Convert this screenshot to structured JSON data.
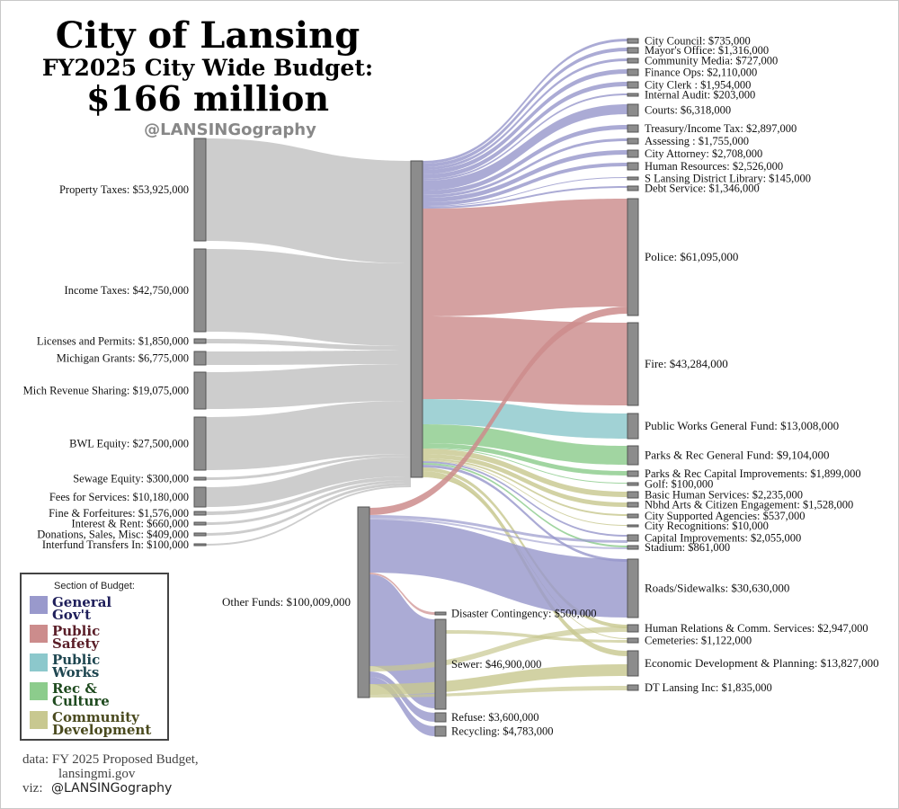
{
  "title": {
    "line1": "City of Lansing",
    "line2": "FY2025 City Wide Budget:",
    "line3": "$166 million",
    "handle": "@LANSINGography"
  },
  "colors": {
    "revenue": "#c8c8c8",
    "general_govt": "#9999cc",
    "public_safety": "#cc8c8c",
    "public_works": "#8cc8cc",
    "rec_culture": "#8ccc8c",
    "community_dev": "#c8c890",
    "node": "#8c8c8c"
  },
  "sources": [
    {
      "label": "Property Taxes: $53,925,000",
      "value": 53925000
    },
    {
      "label": "Income Taxes: $42,750,000",
      "value": 42750000
    },
    {
      "label": "Licenses and Permits: $1,850,000",
      "value": 1850000
    },
    {
      "label": "Michigan Grants: $6,775,000",
      "value": 6775000
    },
    {
      "label": "Mich Revenue Sharing: $19,075,000",
      "value": 19075000
    },
    {
      "label": "BWL Equity: $27,500,000",
      "value": 27500000
    },
    {
      "label": "Sewage Equity: $300,000",
      "value": 300000
    },
    {
      "label": "Fees for Services: $10,180,000",
      "value": 10180000
    },
    {
      "label": "Fine & Forfeitures: $1,576,000",
      "value": 1576000
    },
    {
      "label": "Interest & Rent: $660,000",
      "value": 660000
    },
    {
      "label": "Donations, Sales, Misc: $409,000",
      "value": 409000
    },
    {
      "label": "Interfund Transfers In: $100,000",
      "value": 100000
    }
  ],
  "other_funds": {
    "label": "Other Funds: $100,009,000",
    "value": 100009000
  },
  "sub_funds": [
    {
      "label": "Disaster Contingency: $500,000",
      "value": 500000
    },
    {
      "label": "Sewer: $46,900,000",
      "value": 46900000
    },
    {
      "label": "Refuse: $3,600,000",
      "value": 3600000
    },
    {
      "label": "Recycling: $4,783,000",
      "value": 4783000
    }
  ],
  "targets": [
    {
      "label": "City Council: $735,000",
      "value": 735000,
      "section": "general_govt"
    },
    {
      "label": "Mayor's Office: $1,316,000",
      "value": 1316000,
      "section": "general_govt"
    },
    {
      "label": "Community Media: $727,000",
      "value": 727000,
      "section": "general_govt"
    },
    {
      "label": "Finance Ops: $2,110,000",
      "value": 2110000,
      "section": "general_govt"
    },
    {
      "label": "City Clerk : $1,954,000",
      "value": 1954000,
      "section": "general_govt"
    },
    {
      "label": "Internal Audit: $203,000",
      "value": 203000,
      "section": "general_govt"
    },
    {
      "label": "Courts: $6,318,000",
      "value": 6318000,
      "section": "general_govt"
    },
    {
      "label": "Treasury/Income Tax: $2,897,000",
      "value": 2897000,
      "section": "general_govt"
    },
    {
      "label": "Assessing : $1,755,000",
      "value": 1755000,
      "section": "general_govt"
    },
    {
      "label": "City Attorney: $2,708,000",
      "value": 2708000,
      "section": "general_govt"
    },
    {
      "label": "Human Resources: $2,526,000",
      "value": 2526000,
      "section": "general_govt"
    },
    {
      "label": "S Lansing District Library: $145,000",
      "value": 145000,
      "section": "general_govt"
    },
    {
      "label": "Debt Service: $1,346,000",
      "value": 1346000,
      "section": "general_govt"
    },
    {
      "label": "Police: $61,095,000",
      "value": 61095000,
      "section": "public_safety"
    },
    {
      "label": "Fire: $43,284,000",
      "value": 43284000,
      "section": "public_safety"
    },
    {
      "label": "Public Works General Fund: $13,008,000",
      "value": 13008000,
      "section": "public_works"
    },
    {
      "label": "Parks & Rec General Fund: $9,104,000",
      "value": 9104000,
      "section": "rec_culture"
    },
    {
      "label": "Parks & Rec Capital Improvements: $1,899,000",
      "value": 1899000,
      "section": "rec_culture"
    },
    {
      "label": "Golf: $100,000",
      "value": 100000,
      "section": "rec_culture"
    },
    {
      "label": "Basic Human Services: $2,235,000",
      "value": 2235000,
      "section": "community_dev"
    },
    {
      "label": "Nbhd Arts & Citizen Engagement: $1,528,000",
      "value": 1528000,
      "section": "community_dev"
    },
    {
      "label": "City Supported Agencies: $537,000",
      "value": 537000,
      "section": "community_dev"
    },
    {
      "label": "City Recognitions: $10,000",
      "value": 10000,
      "section": "community_dev"
    },
    {
      "label": "Capital Improvements: $2,055,000",
      "value": 2055000,
      "section": "general_govt"
    },
    {
      "label": "Stadium: $861,000",
      "value": 861000,
      "section": "rec_culture"
    },
    {
      "label": "Roads/Sidewalks: $30,630,000",
      "value": 30630000,
      "section": "general_govt"
    },
    {
      "label": "Human Relations & Comm. Services: $2,947,000",
      "value": 2947000,
      "section": "community_dev"
    },
    {
      "label": "Cemeteries: $1,122,000",
      "value": 1122000,
      "section": "community_dev"
    },
    {
      "label": "Economic Development & Planning: $13,827,000",
      "value": 13827000,
      "section": "community_dev"
    },
    {
      "label": "DT Lansing Inc: $1,835,000",
      "value": 1835000,
      "section": "community_dev"
    }
  ],
  "legend": {
    "title": "Section of Budget:",
    "items": [
      {
        "key": "general_govt",
        "line1": "General",
        "line2": "Gov't",
        "text_color": "#1e1e5a"
      },
      {
        "key": "public_safety",
        "line1": "Public",
        "line2": "Safety",
        "text_color": "#5a1e28"
      },
      {
        "key": "public_works",
        "line1": "Public",
        "line2": "Works",
        "text_color": "#1e4650"
      },
      {
        "key": "rec_culture",
        "line1": "Rec &",
        "line2": "Culture",
        "text_color": "#1e4a1e"
      },
      {
        "key": "community_dev",
        "line1": "Community",
        "line2": "Development",
        "text_color": "#4a4a1e"
      }
    ]
  },
  "credits": {
    "data_line1": "data: FY 2025 Proposed Budget,",
    "data_line2": "lansingmi.gov",
    "viz_prefix": "viz: ",
    "viz_handle": "@LANSINGography"
  }
}
